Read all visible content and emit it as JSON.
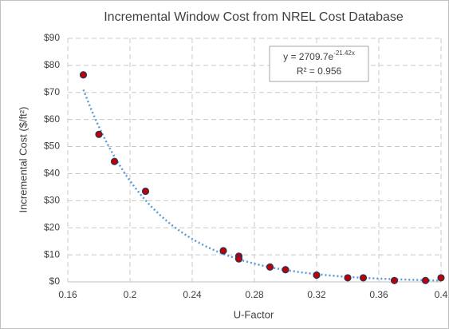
{
  "chart_data": {
    "type": "scatter",
    "title": "Incremental Window Cost from NREL Cost Database",
    "x_label": "U-Factor",
    "y_label": "Incremental Cost ($/ft²)",
    "series": [
      {
        "color": "#c00000",
        "edge_color": "#1f3864",
        "x": [
          0.17,
          0.18,
          0.19,
          0.21,
          0.26,
          0.27,
          0.27,
          0.29,
          0.3,
          0.32,
          0.34,
          0.35,
          0.37,
          0.39,
          0.4
        ],
        "values": [
          76.5,
          54.5,
          44.5,
          33.5,
          11.5,
          9.5,
          8.5,
          5.5,
          4.5,
          2.5,
          1.5,
          1.5,
          0.5,
          0.5,
          1.5
        ]
      }
    ],
    "trendline": {
      "type": "exponential",
      "a": 2709.7,
      "k": -21.42,
      "color": "#5b9bd5",
      "equation_base": "y = 2709.7e",
      "equation_exponent": "-21.42x",
      "r_squared": "R² = 0.956"
    },
    "xlim": [
      0.16,
      0.4
    ],
    "xticks": [
      0.16,
      0.2,
      0.24,
      0.28,
      0.32,
      0.36,
      0.4
    ],
    "ylim": [
      0,
      90
    ],
    "yticks": [
      {
        "value": 0,
        "label": "$0"
      },
      {
        "value": 10,
        "label": "$10"
      },
      {
        "value": 20,
        "label": "$20"
      },
      {
        "value": 30,
        "label": "$30"
      },
      {
        "value": 40,
        "label": "$40"
      },
      {
        "value": 50,
        "label": "$50"
      },
      {
        "value": 60,
        "label": "$60"
      },
      {
        "value": 70,
        "label": "$70"
      },
      {
        "value": 80,
        "label": "$80"
      },
      {
        "value": 90,
        "label": "$90"
      }
    ],
    "grid": true
  }
}
